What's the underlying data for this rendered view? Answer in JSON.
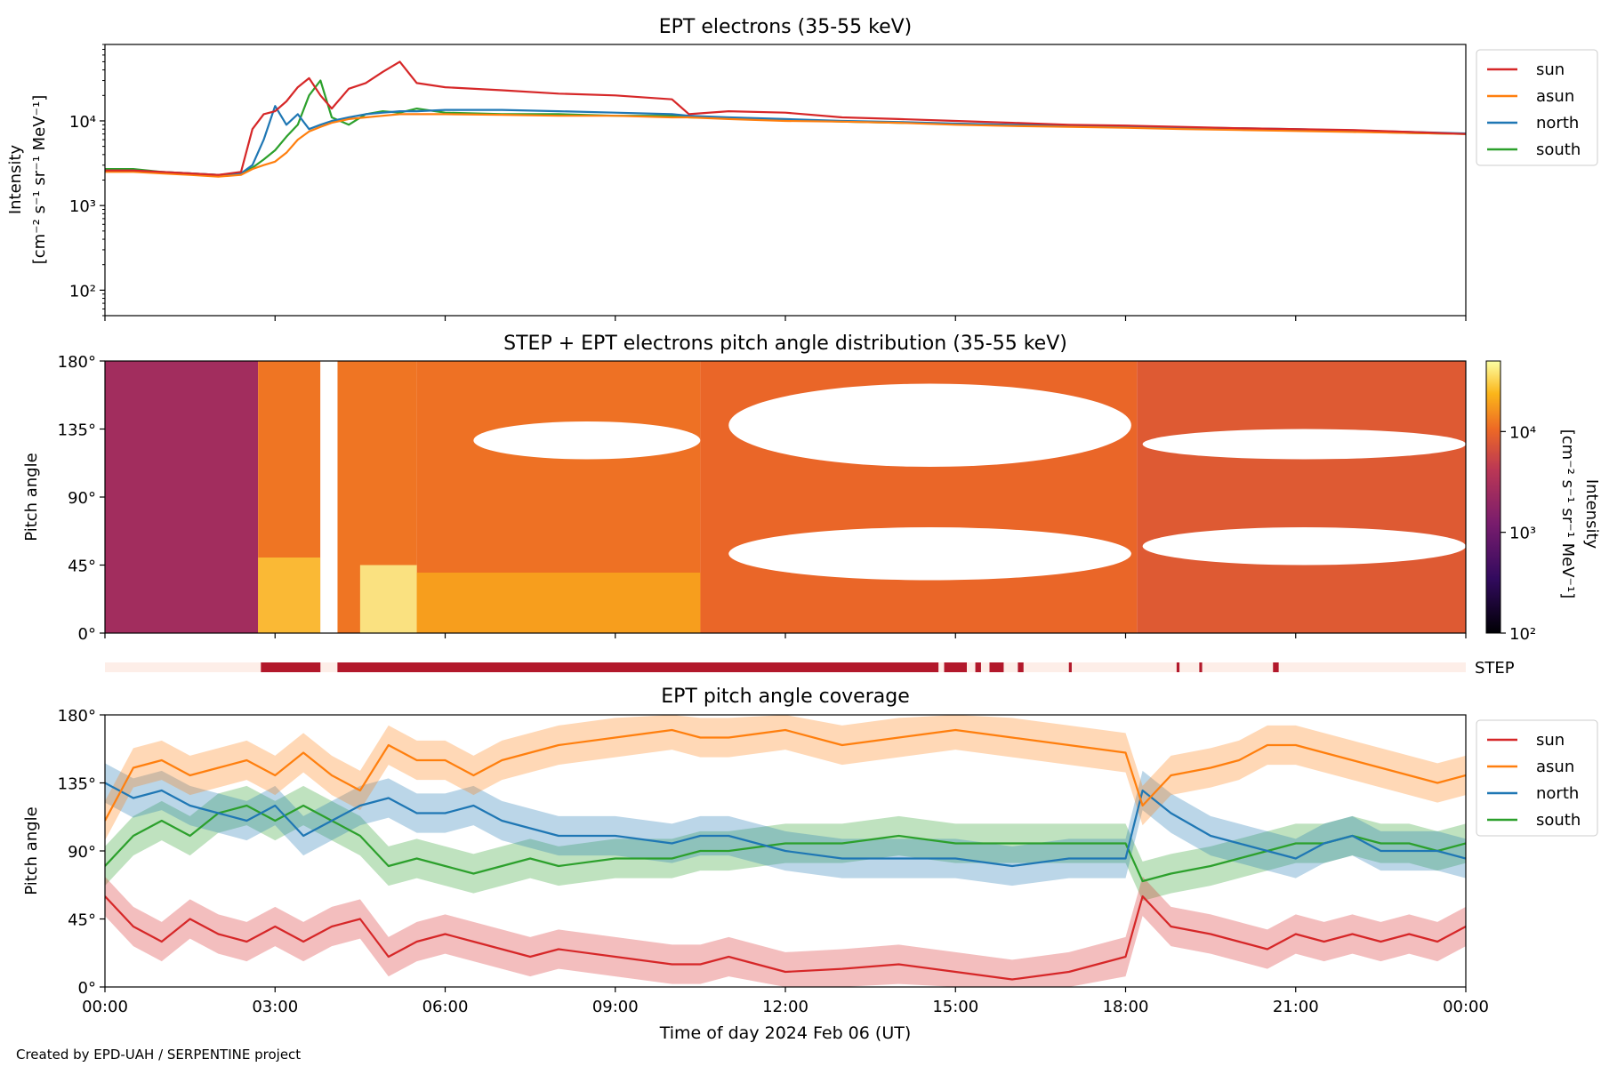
{
  "footer": "Created by EPD-UAH / SERPENTINE project",
  "xlabel": "Time of day 2024 Feb 06 (UT)",
  "x_ticks": [
    "00:00",
    "03:00",
    "06:00",
    "09:00",
    "12:00",
    "15:00",
    "18:00",
    "21:00",
    "00:00"
  ],
  "pitch_ticks": [
    "0°",
    "45°",
    "90°",
    "135°",
    "180°"
  ],
  "colors": {
    "sun": "#d62728",
    "asun": "#ff7f0e",
    "north": "#1f77b4",
    "south": "#2ca02c",
    "step_bar": "#b2182b",
    "step_bg": "#fdeee8"
  },
  "chart_data": [
    {
      "id": "panel1",
      "type": "line",
      "title": "EPT electrons (35-55 keV)",
      "ylabel": [
        "Intensity",
        "[cm⁻² s⁻¹ sr⁻¹ MeV⁻¹]"
      ],
      "yscale": "log",
      "ylim": [
        50,
        80000
      ],
      "yticks": [
        "10²",
        "10³",
        "10⁴"
      ],
      "xlim": [
        0,
        24
      ],
      "legend": "top-right (outside)",
      "x": [
        0,
        0.5,
        1,
        1.5,
        2,
        2.4,
        2.6,
        2.8,
        3,
        3.2,
        3.4,
        3.6,
        3.8,
        4,
        4.3,
        4.6,
        4.9,
        5.2,
        5.5,
        6,
        7,
        8,
        9,
        10,
        10.3,
        11,
        12,
        13,
        14,
        15,
        16,
        17,
        18,
        19,
        20,
        21,
        22,
        23,
        24
      ],
      "series": [
        {
          "name": "sun",
          "values": [
            2600,
            2600,
            2500,
            2400,
            2300,
            2500,
            8000,
            12000,
            13000,
            17000,
            25000,
            32000,
            20000,
            14000,
            24000,
            28000,
            38000,
            50000,
            28000,
            25000,
            23000,
            21000,
            20000,
            18000,
            12000,
            13000,
            12500,
            11000,
            10500,
            10000,
            9500,
            9000,
            8800,
            8500,
            8200,
            8000,
            7800,
            7400,
            7000
          ]
        },
        {
          "name": "asun",
          "values": [
            2500,
            2500,
            2400,
            2300,
            2200,
            2300,
            2700,
            3000,
            3300,
            4200,
            6000,
            7500,
            8500,
            9500,
            10500,
            11000,
            11500,
            12000,
            12000,
            12000,
            11800,
            11500,
            11500,
            11000,
            11000,
            10500,
            10000,
            9800,
            9500,
            9000,
            8700,
            8500,
            8300,
            8000,
            7800,
            7600,
            7400,
            7200,
            7000
          ]
        },
        {
          "name": "north",
          "values": [
            2600,
            2600,
            2500,
            2400,
            2300,
            2400,
            3000,
            6000,
            15000,
            9000,
            12000,
            8000,
            9000,
            10000,
            11000,
            12000,
            12500,
            13000,
            13000,
            13500,
            13500,
            13000,
            12500,
            12000,
            11500,
            11000,
            10500,
            10000,
            9700,
            9300,
            9000,
            8800,
            8600,
            8400,
            8200,
            8000,
            7700,
            7400,
            7100
          ]
        },
        {
          "name": "south",
          "values": [
            2700,
            2700,
            2500,
            2400,
            2300,
            2400,
            2800,
            3500,
            4500,
            6500,
            9000,
            20000,
            30000,
            11000,
            9000,
            12000,
            13000,
            12500,
            14000,
            12500,
            12000,
            12000,
            11500,
            11500,
            11000,
            10800,
            10300,
            9800,
            9500,
            9200,
            8800,
            8600,
            8400,
            8200,
            8000,
            7800,
            7500,
            7200,
            7000
          ]
        }
      ]
    },
    {
      "id": "panel2",
      "type": "heatmap",
      "title": "STEP + EPT electrons pitch angle distribution (35-55 keV)",
      "ylabel": "Pitch angle",
      "ylim": [
        0,
        180
      ],
      "xlim": [
        0,
        24
      ],
      "colorbar_label": [
        "Intensity",
        "[cm⁻² s⁻¹ sr⁻¹ MeV⁻¹]"
      ],
      "colorbar_ticks": [
        "10²",
        "10³",
        "10⁴"
      ],
      "colorscale": "inferno-like",
      "clim_log": [
        2,
        4.7
      ],
      "blocks": [
        {
          "start": 0.0,
          "end": 2.7,
          "low": 0,
          "high": 180,
          "value": 2600
        },
        {
          "start": 2.7,
          "end": 3.8,
          "low": 0,
          "high": 180,
          "value": 12000
        },
        {
          "start": 4.1,
          "end": 5.5,
          "low": 0,
          "high": 180,
          "value": 12000
        },
        {
          "start": 5.5,
          "end": 10.5,
          "low": 0,
          "high": 180,
          "value": 11500
        },
        {
          "start": 10.5,
          "end": 18.2,
          "low": 0,
          "high": 180,
          "value": 10000
        },
        {
          "start": 18.2,
          "end": 24.0,
          "low": 0,
          "high": 180,
          "value": 8000
        }
      ],
      "bright_spots": [
        {
          "start": 2.7,
          "end": 3.8,
          "low": 0,
          "high": 50,
          "value": 28000
        },
        {
          "start": 4.5,
          "end": 5.5,
          "low": 0,
          "high": 45,
          "value": 45000
        },
        {
          "start": 5.5,
          "end": 10.5,
          "low": 0,
          "high": 40,
          "value": 20000
        }
      ],
      "gaps": [
        {
          "start": 11.0,
          "end": 18.1,
          "low": 110,
          "high": 165
        },
        {
          "start": 11.0,
          "end": 18.1,
          "low": 35,
          "high": 70
        },
        {
          "start": 6.5,
          "end": 10.5,
          "low": 115,
          "high": 140
        },
        {
          "start": 18.3,
          "end": 24.0,
          "low": 115,
          "high": 135
        },
        {
          "start": 18.3,
          "end": 24.0,
          "low": 45,
          "high": 70
        }
      ]
    },
    {
      "id": "step_bar",
      "type": "bar",
      "label": "STEP",
      "segments": [
        [
          2.75,
          3.8
        ],
        [
          4.1,
          14.7
        ],
        [
          14.8,
          15.2
        ],
        [
          15.35,
          15.45
        ],
        [
          15.6,
          15.85
        ],
        [
          16.1,
          16.2
        ],
        [
          17.0,
          17.05
        ],
        [
          18.9,
          18.95
        ],
        [
          19.3,
          19.35
        ],
        [
          20.6,
          20.7
        ]
      ]
    },
    {
      "id": "panel3",
      "type": "line",
      "title": "EPT pitch angle coverage",
      "ylabel": "Pitch angle",
      "ylim": [
        0,
        180
      ],
      "xlim": [
        0,
        24
      ],
      "legend": "top-right (outside)",
      "band_halfwidth": 13,
      "x": [
        0,
        0.5,
        1,
        1.5,
        2,
        2.5,
        3,
        3.5,
        4,
        4.5,
        5,
        5.5,
        6,
        6.5,
        7,
        7.5,
        8,
        9,
        10,
        10.5,
        11,
        12,
        13,
        14,
        15,
        16,
        17,
        18,
        18.3,
        18.8,
        19.5,
        20,
        20.5,
        21,
        21.5,
        22,
        22.5,
        23,
        23.5,
        24
      ],
      "series": [
        {
          "name": "sun",
          "values": [
            60,
            40,
            30,
            45,
            35,
            30,
            40,
            30,
            40,
            45,
            20,
            30,
            35,
            30,
            25,
            20,
            25,
            20,
            15,
            15,
            20,
            10,
            12,
            15,
            10,
            5,
            10,
            20,
            60,
            40,
            35,
            30,
            25,
            35,
            30,
            35,
            30,
            35,
            30,
            40
          ]
        },
        {
          "name": "asun",
          "values": [
            110,
            145,
            150,
            140,
            145,
            150,
            140,
            155,
            140,
            130,
            160,
            150,
            150,
            140,
            150,
            155,
            160,
            165,
            170,
            165,
            165,
            170,
            160,
            165,
            170,
            165,
            160,
            155,
            120,
            140,
            145,
            150,
            160,
            160,
            155,
            150,
            145,
            140,
            135,
            140
          ]
        },
        {
          "name": "north",
          "values": [
            135,
            125,
            130,
            120,
            115,
            110,
            120,
            100,
            110,
            120,
            125,
            115,
            115,
            120,
            110,
            105,
            100,
            100,
            95,
            100,
            100,
            90,
            85,
            85,
            85,
            80,
            85,
            85,
            130,
            115,
            100,
            95,
            90,
            85,
            95,
            100,
            90,
            90,
            90,
            85
          ]
        },
        {
          "name": "south",
          "values": [
            80,
            100,
            110,
            100,
            115,
            120,
            110,
            120,
            110,
            100,
            80,
            85,
            80,
            75,
            80,
            85,
            80,
            85,
            85,
            90,
            90,
            95,
            95,
            100,
            95,
            95,
            95,
            95,
            70,
            75,
            80,
            85,
            90,
            95,
            95,
            100,
            95,
            95,
            90,
            95
          ]
        }
      ]
    }
  ]
}
